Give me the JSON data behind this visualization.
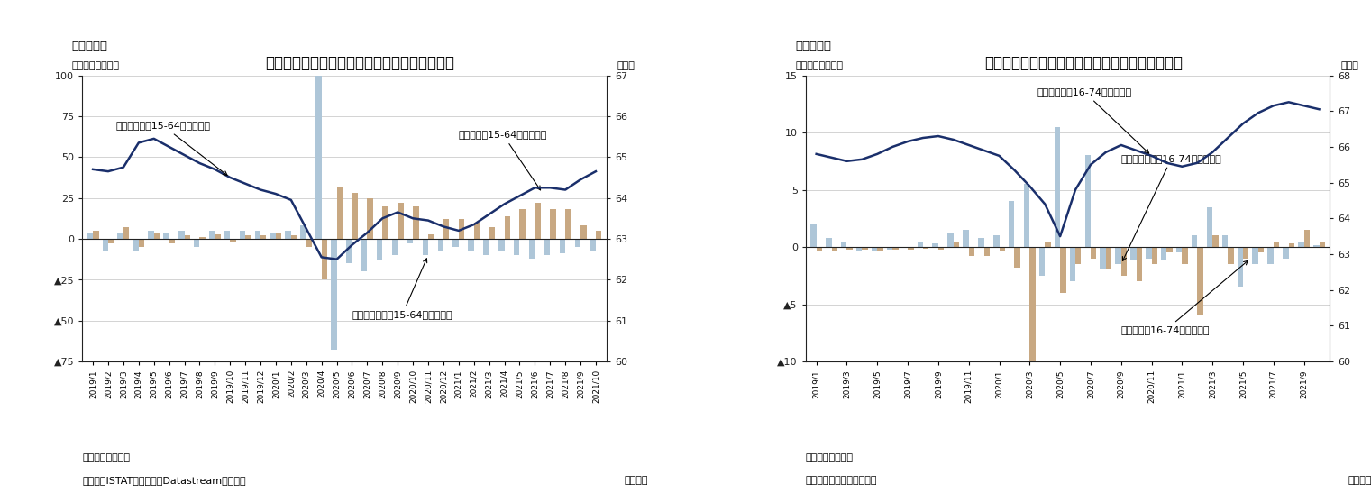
{
  "chart1": {
    "title": "イタリアの失業者・非労働力人口・労働参加率",
    "fig_label": "（図表７）",
    "ylabel_left": "（前月差、万人）",
    "ylabel_right": "（％）",
    "note1": "（注）季節調整値",
    "note2": "（資料）ISTATのデータをDatastreamより取得",
    "note3": "（月次）",
    "ylim_left": [
      -75,
      100
    ],
    "ylim_right": [
      60,
      67
    ],
    "yticks_left": [
      100,
      75,
      50,
      25,
      0,
      -25,
      -50,
      -75
    ],
    "yticks_right": [
      67,
      66,
      65,
      64,
      63,
      62,
      61,
      60
    ],
    "months": [
      "2019/1",
      "2019/2",
      "2019/3",
      "2019/4",
      "2019/5",
      "2019/6",
      "2019/7",
      "2019/8",
      "2019/9",
      "2019/10",
      "2019/11",
      "2019/12",
      "2020/1",
      "2020/2",
      "2020/3",
      "2020/4",
      "2020/5",
      "2020/6",
      "2020/7",
      "2020/8",
      "2020/9",
      "2020/10",
      "2020/11",
      "2020/12",
      "2021/1",
      "2021/2",
      "2021/3",
      "2021/4",
      "2021/5",
      "2021/6",
      "2021/7",
      "2021/8",
      "2021/9",
      "2021/10"
    ],
    "labor_rate": [
      64.7,
      64.65,
      64.75,
      65.35,
      65.45,
      65.25,
      65.05,
      64.85,
      64.7,
      64.5,
      64.35,
      64.2,
      64.1,
      63.95,
      63.25,
      62.55,
      62.5,
      62.85,
      63.15,
      63.5,
      63.65,
      63.5,
      63.45,
      63.3,
      63.2,
      63.35,
      63.6,
      63.85,
      64.05,
      64.25,
      64.25,
      64.2,
      64.45,
      64.65
    ],
    "unemployed": [
      5,
      -3,
      7,
      -5,
      4,
      -3,
      2,
      1,
      3,
      -2,
      2,
      2,
      4,
      2,
      -5,
      -25,
      32,
      28,
      25,
      20,
      22,
      20,
      3,
      12,
      12,
      10,
      7,
      14,
      18,
      22,
      18,
      18,
      8,
      5
    ],
    "non_labor": [
      4,
      -8,
      4,
      -7,
      5,
      4,
      5,
      -5,
      5,
      5,
      5,
      5,
      4,
      5,
      8,
      100,
      -68,
      -15,
      -20,
      -13,
      -10,
      -3,
      -10,
      -8,
      -5,
      -7,
      -10,
      -8,
      -10,
      -12,
      -10,
      -9,
      -5,
      -7
    ],
    "bar_unemployed_color": "#c8a882",
    "bar_nonlabor_color": "#aec6d8",
    "line_color": "#1a2f6b",
    "line_annotation": "労働参加率（15-64才、右軸）",
    "bar_unemployed_annotation": "失業者数（15-64才）の変化",
    "bar_nonlabor_annotation": "非労働者人口（15-64才）の変化"
  },
  "chart2": {
    "title": "ポルトガルの失業者・非労働力人口・労働参加率",
    "fig_label": "（図表８）",
    "ylabel_left": "（前月差、万人）",
    "ylabel_right": "（％）",
    "note1": "（注）季節調整値",
    "note2": "（資料）ポルトガル統計局",
    "note3": "（月次）",
    "ylim_left": [
      -10,
      15
    ],
    "ylim_right": [
      60,
      68
    ],
    "yticks_left": [
      15,
      10,
      5,
      0,
      -5,
      -10
    ],
    "yticks_right": [
      68,
      67,
      66,
      65,
      64,
      63,
      62,
      61,
      60
    ],
    "months": [
      "2019/1",
      "2019/2",
      "2019/3",
      "2019/4",
      "2019/5",
      "2019/6",
      "2019/7",
      "2019/8",
      "2019/9",
      "2019/10",
      "2019/11",
      "2019/12",
      "2020/1",
      "2020/2",
      "2020/3",
      "2020/4",
      "2020/5",
      "2020/6",
      "2020/7",
      "2020/8",
      "2020/9",
      "2020/10",
      "2020/11",
      "2020/12",
      "2021/1",
      "2021/2",
      "2021/3",
      "2021/4",
      "2021/5",
      "2021/6",
      "2021/7",
      "2021/8",
      "2021/9",
      "2021/10"
    ],
    "xtick_every": 2,
    "labor_rate": [
      65.8,
      65.7,
      65.6,
      65.65,
      65.8,
      66.0,
      66.15,
      66.25,
      66.3,
      66.2,
      66.05,
      65.9,
      65.75,
      65.35,
      64.9,
      64.4,
      63.5,
      64.8,
      65.5,
      65.85,
      66.05,
      65.9,
      65.75,
      65.55,
      65.45,
      65.55,
      65.85,
      66.25,
      66.65,
      66.95,
      67.15,
      67.25,
      67.15,
      67.05
    ],
    "non_labor": [
      2.0,
      0.8,
      0.5,
      -0.3,
      -0.4,
      -0.2,
      -0.1,
      0.4,
      0.3,
      1.2,
      1.5,
      0.8,
      1.0,
      4.0,
      5.5,
      -2.5,
      10.5,
      -3.0,
      8.0,
      -2.0,
      -1.5,
      -1.2,
      -1.0,
      -1.2,
      -0.5,
      1.0,
      3.5,
      1.0,
      -3.5,
      -1.5,
      -1.5,
      -1.0,
      0.5,
      0.2
    ],
    "unemployed": [
      -0.4,
      -0.4,
      -0.2,
      -0.2,
      -0.3,
      -0.2,
      -0.2,
      -0.15,
      -0.2,
      0.4,
      -0.8,
      -0.8,
      -0.4,
      -1.8,
      -10.0,
      0.4,
      -4.0,
      -1.5,
      -1.0,
      -2.0,
      -2.5,
      -3.0,
      -1.5,
      -0.5,
      -1.5,
      -6.0,
      1.0,
      -1.5,
      -1.0,
      -0.5,
      0.5,
      0.3,
      1.5,
      0.5
    ],
    "bar_nonlabor_color": "#aec6d8",
    "bar_unemployed_color": "#c8a882",
    "line_color": "#1a2f6b",
    "line_annotation": "労働参加率（16-74才、右軸）",
    "bar_nonlabor_annotation": "非労働者人口（16-74才）の変化",
    "bar_unemployed_annotation": "失業者数（16-74才）の変化"
  },
  "bg_color": "#ffffff",
  "axis_color": "#222222",
  "grid_color": "#cccccc"
}
